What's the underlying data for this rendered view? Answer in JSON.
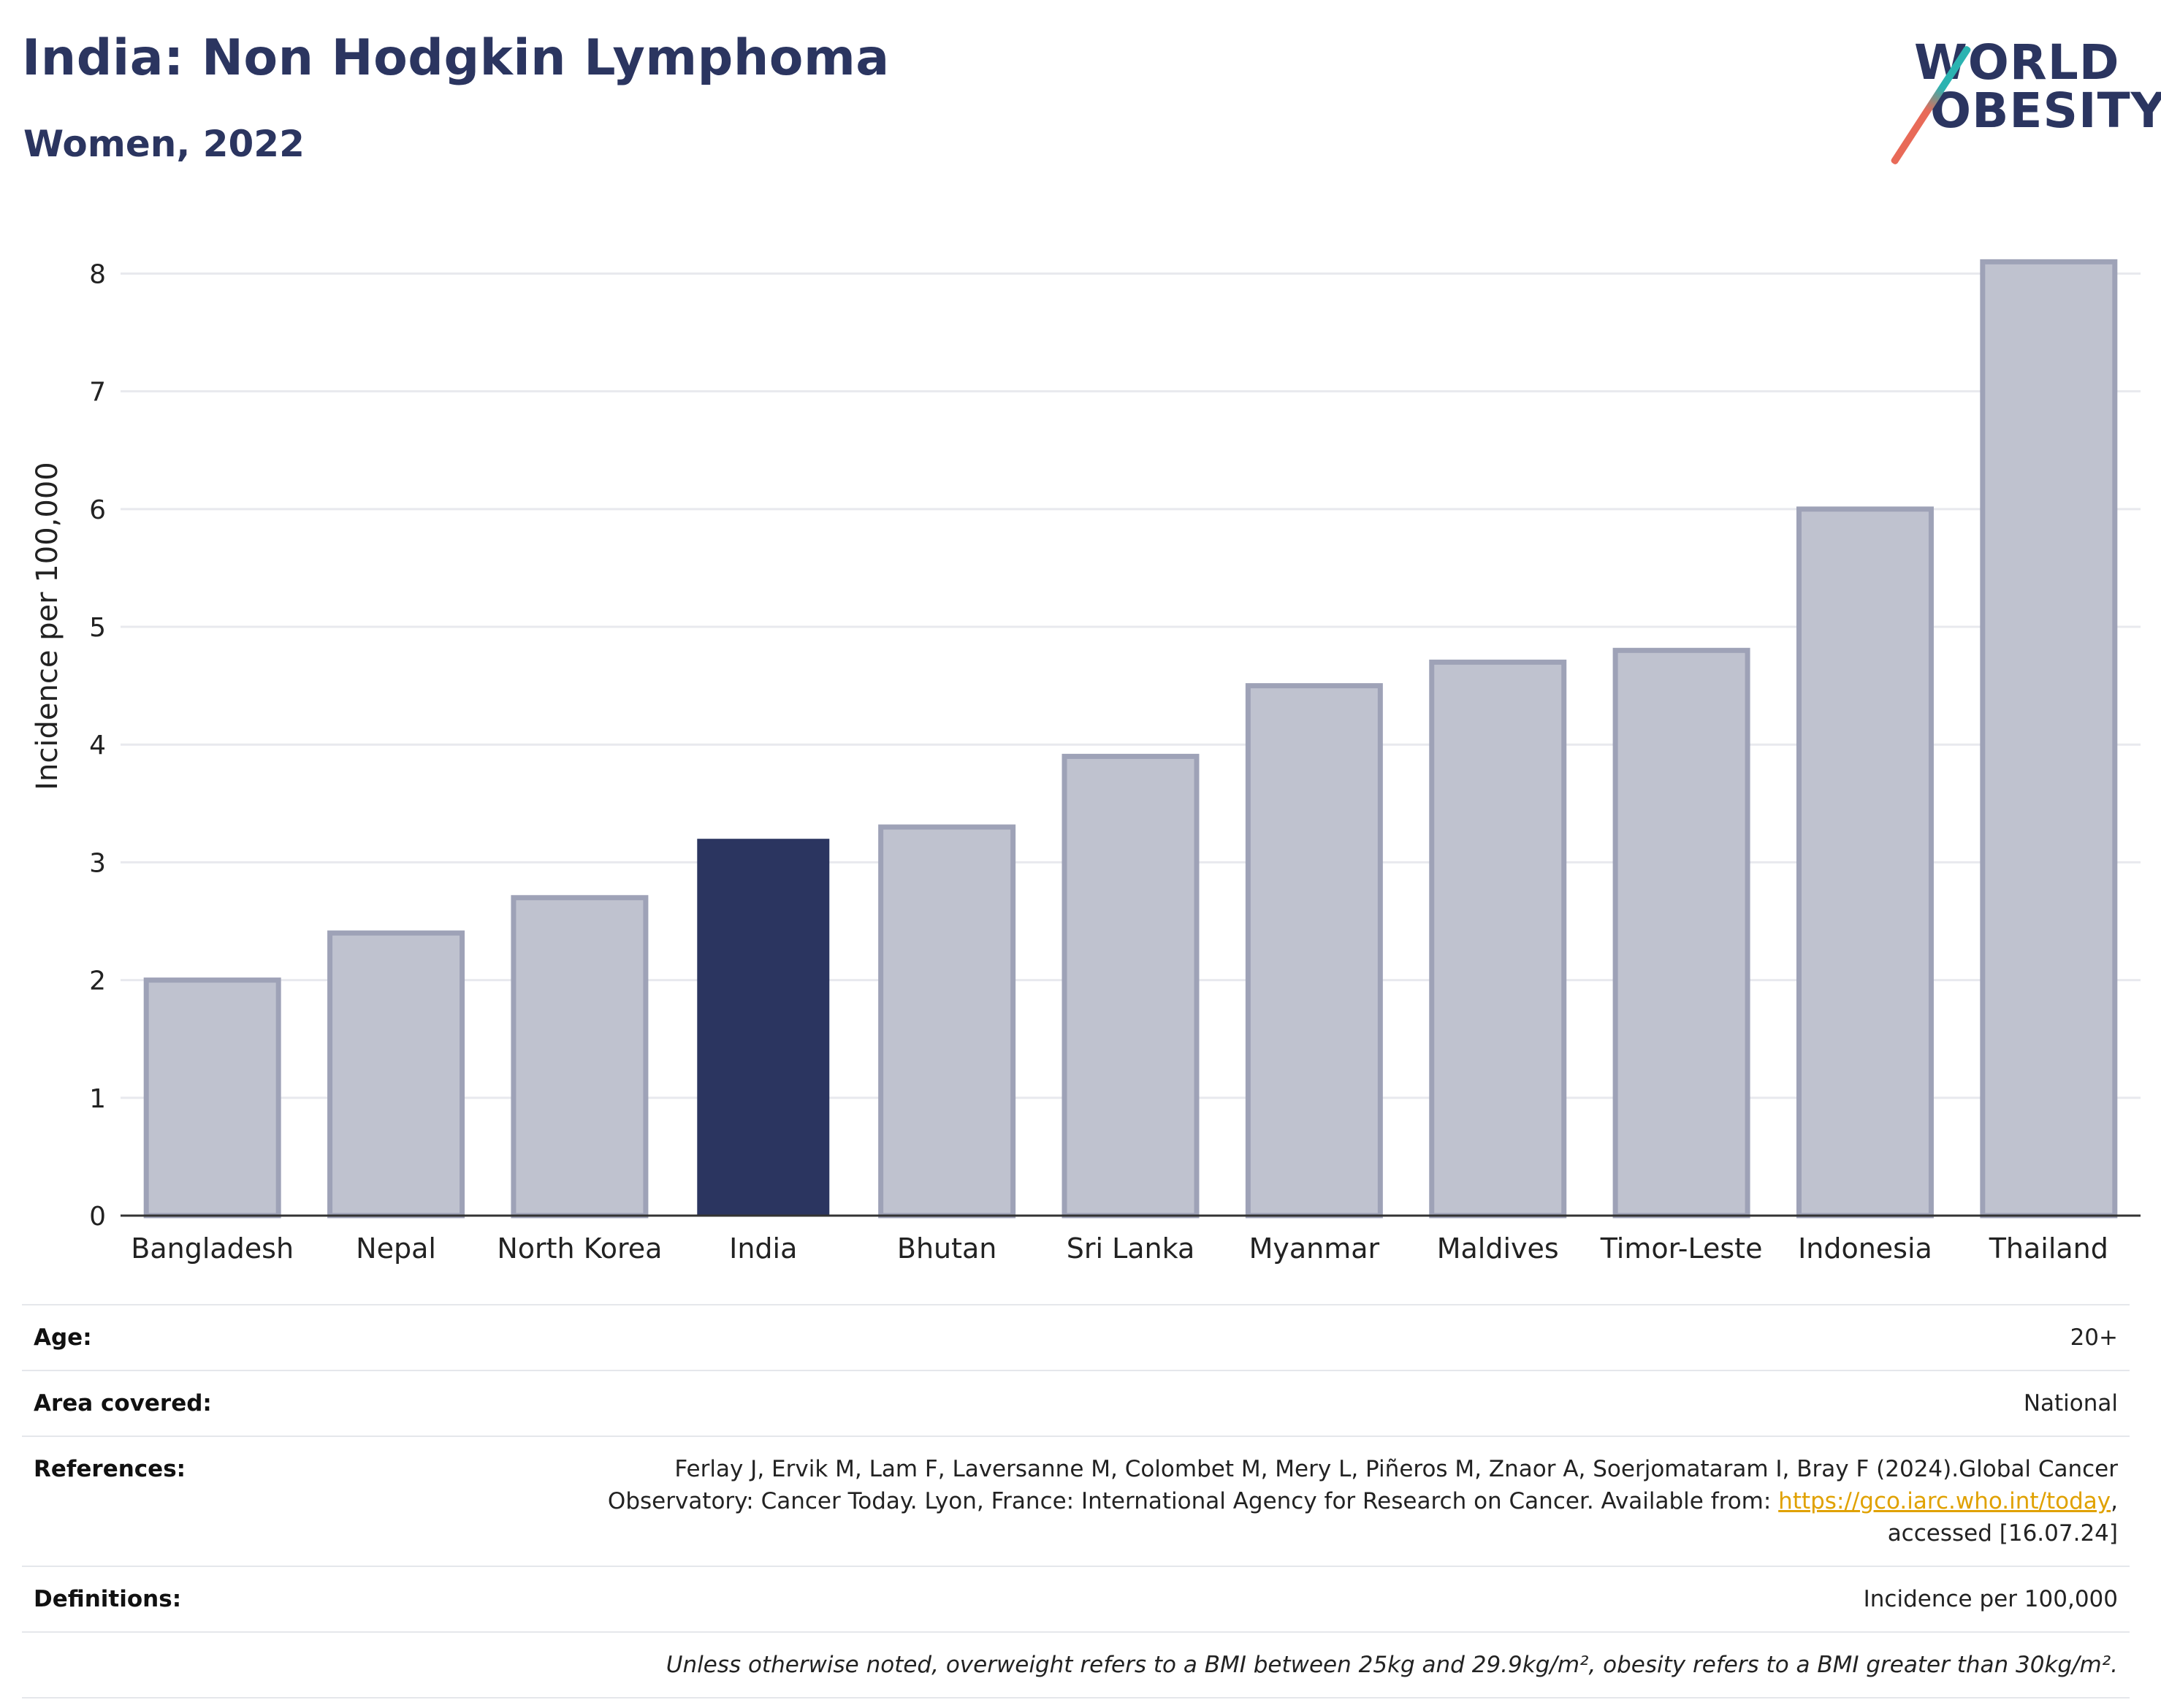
{
  "header": {
    "title": "India: Non Hodgkin Lymphoma",
    "subtitle": "Women, 2022",
    "logo_line1": "WORLD",
    "logo_line2": "OBESITY"
  },
  "chart_data": {
    "type": "bar",
    "title": "India: Non Hodgkin Lymphoma",
    "subtitle": "Women, 2022",
    "xlabel": "",
    "ylabel": "Incidence per 100,000",
    "categories": [
      "Bangladesh",
      "Nepal",
      "North Korea",
      "India",
      "Bhutan",
      "Sri Lanka",
      "Myanmar",
      "Maldives",
      "Timor-Leste",
      "Indonesia",
      "Thailand"
    ],
    "values": [
      2.0,
      2.4,
      2.7,
      3.2,
      3.3,
      3.9,
      4.5,
      4.7,
      4.8,
      6.0,
      8.1
    ],
    "highlight": "India",
    "ylim": [
      0,
      8.4
    ],
    "yticks": [
      0,
      1,
      2,
      3,
      4,
      5,
      6,
      7,
      8
    ],
    "grid": true,
    "colors": {
      "bar": "#bfc2cf",
      "bar_border": "#9ea2b7",
      "highlight": "#2b3560",
      "grid": "#e8e9ee"
    }
  },
  "info": {
    "age_label": "Age:",
    "age_value": "20+",
    "area_label": "Area covered:",
    "area_value": "National",
    "references_label": "References:",
    "references_text": "Ferlay J, Ervik M, Lam F, Laversanne M, Colombet M, Mery L, Piñeros M, Znaor A, Soerjomataram I, Bray F (2024).Global Cancer Observatory: Cancer Today. Lyon, France: International Agency for Research on Cancer. Available from: ",
    "references_link": "https://gco.iarc.who.int/today",
    "references_suffix": ", accessed [16.07.24]",
    "definitions_label": "Definitions:",
    "definitions_value": "Incidence per 100,000",
    "note": "Unless otherwise noted, overweight refers to a BMI between 25kg and 29.9kg/m², obesity refers to a BMI greater than 30kg/m²."
  }
}
